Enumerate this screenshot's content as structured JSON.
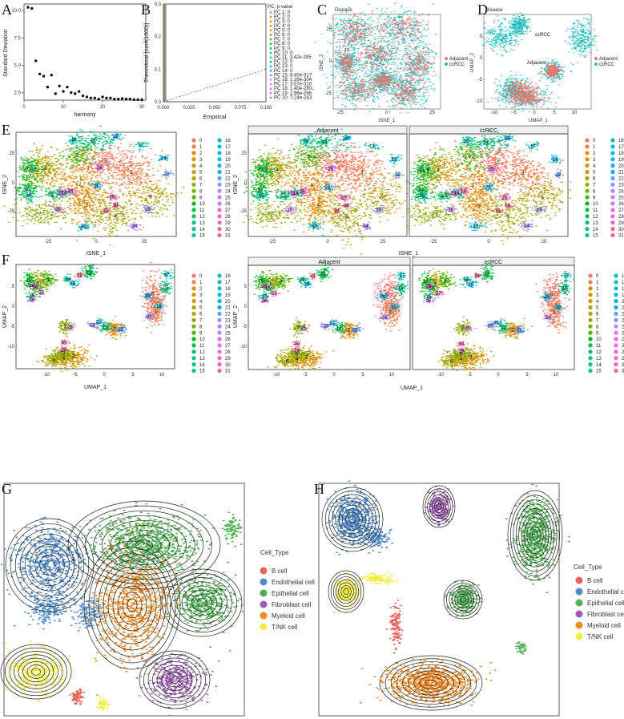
{
  "panels": {
    "A": "A",
    "B": "B",
    "C": "C",
    "D": "D",
    "E": "E",
    "F": "F",
    "G": "G",
    "H": "H"
  },
  "colors": {
    "adjacent": "#f0756b",
    "ccRCC": "#27bfc3",
    "palette32": [
      "#f8766d",
      "#f07e4b",
      "#e58700",
      "#d89000",
      "#c99800",
      "#b79f00",
      "#a3a500",
      "#8cab00",
      "#6fb000",
      "#45b500",
      "#00b81f",
      "#00bb48",
      "#00bd64",
      "#00c07b",
      "#00c090",
      "#00c1a3",
      "#00c0b5",
      "#00bfc4",
      "#00bcd8",
      "#00b7e9",
      "#00b0f6",
      "#00a8ff",
      "#619cff",
      "#8f91ff",
      "#b186ff",
      "#cb7bfa",
      "#de70f0",
      "#ec69e1",
      "#f564cf",
      "#fb61bb",
      "#fe61a6",
      "#ff6591"
    ],
    "cell_types": [
      "#e8645a",
      "#4f8cc9",
      "#4caf50",
      "#a05bb7",
      "#f28a1e",
      "#f2ee3f"
    ]
  },
  "chart_data": [
    {
      "panel": "A",
      "type": "scatter",
      "xlabel": "harmony",
      "ylabel": "Standard Deviation",
      "xticks": [
        "0",
        "10",
        "20",
        "30"
      ],
      "yticks": [
        "2.5",
        "5.0",
        "7.5",
        "10.0"
      ],
      "xlim": [
        0,
        31
      ],
      "ylim": [
        1.8,
        10.6
      ],
      "x": [
        1,
        2,
        3,
        4,
        5,
        6,
        7,
        8,
        9,
        10,
        11,
        12,
        13,
        14,
        15,
        16,
        17,
        18,
        19,
        20,
        21,
        22,
        23,
        24,
        25,
        26,
        27,
        28,
        29,
        30
      ],
      "y": [
        10.3,
        10.2,
        5.4,
        4.2,
        4.0,
        3.0,
        4.1,
        2.4,
        3.1,
        2.6,
        3.0,
        2.5,
        2.4,
        2.6,
        2.2,
        2.1,
        2.0,
        2.0,
        1.9,
        2.1,
        2.0,
        2.0,
        1.9,
        1.9,
        1.95,
        1.9,
        1.9,
        1.85,
        1.85,
        1.85
      ]
    },
    {
      "panel": "B",
      "type": "line",
      "xlabel": "Empirical",
      "ylabel": "Theoretical [runif(1000)]",
      "xticks": [
        "0.000",
        "0.025",
        "0.050",
        "0.075",
        "0.100"
      ],
      "yticks": [
        "0.0",
        "0.1",
        "0.2",
        "0.3"
      ],
      "xlim": [
        0,
        0.1
      ],
      "ylim": [
        0,
        0.3
      ],
      "legend_title": "PC: p-value",
      "legend": [
        "PC 1: 0",
        "PC 2: 0",
        "PC 3: 0",
        "PC 4: 0",
        "PC 5: 0",
        "PC 6: 0",
        "PC 7: 0",
        "PC 8: 0",
        "PC 9: 0",
        "PC 10: 0",
        "PC 11: 3.42e-285",
        "PC 12: 0",
        "PC 13: 0",
        "PC 14: 0",
        "PC 15: 8.40e-317",
        "PC 16: 1.29e-304",
        "PC 17: 3.57e-310",
        "PC 18: 1.40e-280",
        "PC 19: 2.96e-266",
        "PC 20: 7.24e-243"
      ]
    },
    {
      "panel": "C",
      "type": "scatter",
      "title": "Disease",
      "xlabel": "tSNE_1",
      "ylabel": "tSNE_2",
      "xticks": [
        "-25",
        "0",
        "25"
      ],
      "yticks": [
        "-25",
        "0",
        "25"
      ],
      "legend": [
        "Adjacent",
        "ccRCC"
      ]
    },
    {
      "panel": "D",
      "type": "scatter",
      "title": "Disease",
      "xlabel": "UMAP_1",
      "ylabel": "UMAP_2",
      "xticks": [
        "-10",
        "-5",
        "0",
        "5",
        "10"
      ],
      "yticks": [
        "-10",
        "-5",
        "0",
        "5"
      ],
      "legend": [
        "Adjacent",
        "ccRCC"
      ],
      "annotations": [
        "ccRCC",
        "Adjacent"
      ]
    },
    {
      "panel": "E",
      "type": "scatter",
      "xlabel": "tSNE_1",
      "ylabel": "tSNE_2",
      "xticks": [
        "-25",
        "0",
        "25"
      ],
      "yticks": [
        "-25",
        "0",
        "25"
      ],
      "facets": [
        "Adjacent",
        "ccRCC"
      ],
      "legend": [
        "0",
        "1",
        "2",
        "3",
        "4",
        "5",
        "6",
        "7",
        "8",
        "9",
        "10",
        "11",
        "12",
        "13",
        "14",
        "15",
        "16",
        "17",
        "18",
        "19",
        "20",
        "21",
        "22",
        "23",
        "24",
        "25",
        "26",
        "27",
        "28",
        "29",
        "30",
        "31"
      ]
    },
    {
      "panel": "F",
      "type": "scatter",
      "xlabel": "UMAP_1",
      "ylabel": "UMAP_2",
      "xticks": [
        "-10",
        "-5",
        "0",
        "5",
        "10"
      ],
      "yticks": [
        "-10",
        "-5",
        "0",
        "5"
      ],
      "facets": [
        "Adjacent",
        "ccRCC"
      ],
      "legend": [
        "0",
        "1",
        "2",
        "3",
        "4",
        "5",
        "6",
        "7",
        "8",
        "9",
        "10",
        "11",
        "12",
        "13",
        "14",
        "15",
        "16",
        "17",
        "18",
        "19",
        "20",
        "21",
        "22",
        "23",
        "24",
        "25",
        "26",
        "27",
        "28",
        "29",
        "30",
        "31"
      ]
    },
    {
      "panel": "G",
      "type": "scatter",
      "legend_title": "Cell_Type",
      "legend": [
        "B cell",
        "Endothelial cell",
        "Epithelial cell",
        "Fibroblast cell",
        "Myeloid cell",
        "T/NK cell"
      ]
    },
    {
      "panel": "H",
      "type": "scatter",
      "legend_title": "Cell_Type",
      "legend": [
        "B cell",
        "Endothelial cell",
        "Epithelial cell",
        "Fibroblast cell",
        "Myeloid cell",
        "T/NK cell"
      ]
    }
  ]
}
